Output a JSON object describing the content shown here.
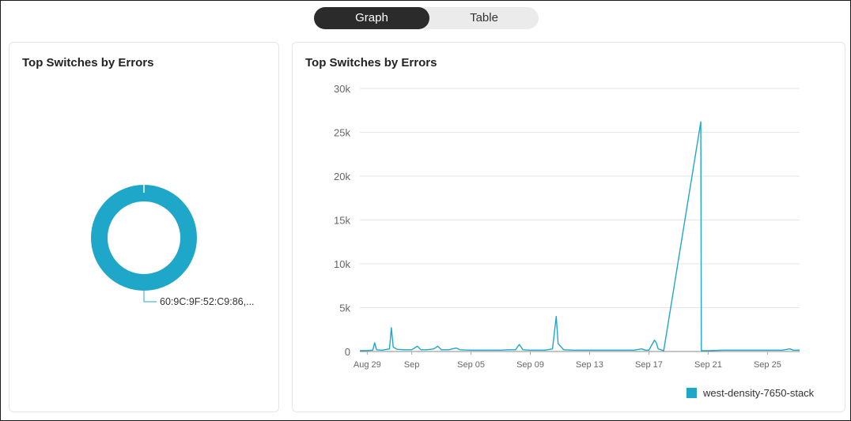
{
  "toggle": {
    "graph_label": "Graph",
    "table_label": "Table",
    "active": "Graph"
  },
  "colors": {
    "series": "#1fa7c9",
    "grid": "#e6e6e6",
    "axis_text": "#666666"
  },
  "left_panel": {
    "title": "Top Switches by Errors"
  },
  "right_panel": {
    "title": "Top Switches by Errors"
  },
  "chart_data": [
    {
      "type": "pie",
      "donut": true,
      "slices": [
        {
          "label": "60:9C:9F:52:C9:86,...",
          "value": 100
        }
      ]
    },
    {
      "type": "line",
      "x_type": "date",
      "ylim": [
        0,
        30000
      ],
      "y_ticks": [
        {
          "value": 0,
          "label": "0"
        },
        {
          "value": 5000,
          "label": "5k"
        },
        {
          "value": 10000,
          "label": "10k"
        },
        {
          "value": 15000,
          "label": "15k"
        },
        {
          "value": 20000,
          "label": "20k"
        },
        {
          "value": 25000,
          "label": "25k"
        },
        {
          "value": 30000,
          "label": "30k"
        }
      ],
      "x_ticks": [
        {
          "value": "2024-08-29",
          "label": "Aug 29"
        },
        {
          "value": "2024-09-01",
          "label": "Sep"
        },
        {
          "value": "2024-09-05",
          "label": "Sep 05"
        },
        {
          "value": "2024-09-09",
          "label": "Sep 09"
        },
        {
          "value": "2024-09-13",
          "label": "Sep 13"
        },
        {
          "value": "2024-09-17",
          "label": "Sep 17"
        },
        {
          "value": "2024-09-21",
          "label": "Sep 21"
        },
        {
          "value": "2024-09-25",
          "label": "Sep 25"
        }
      ],
      "xlim": [
        "2024-08-28T12:00",
        "2024-09-27T04:00"
      ],
      "legend_position": "bottom-right",
      "series": [
        {
          "name": "west-density-7650-stack",
          "points": [
            [
              "2024-08-28T12:00",
              100
            ],
            [
              "2024-08-29T00:00",
              120
            ],
            [
              "2024-08-29T09:00",
              150
            ],
            [
              "2024-08-29T12:00",
              1000
            ],
            [
              "2024-08-29T15:00",
              200
            ],
            [
              "2024-08-30T00:00",
              150
            ],
            [
              "2024-08-30T12:00",
              300
            ],
            [
              "2024-08-30T15:00",
              2700
            ],
            [
              "2024-08-30T18:00",
              500
            ],
            [
              "2024-08-31T00:00",
              250
            ],
            [
              "2024-08-31T12:00",
              200
            ],
            [
              "2024-09-01T00:00",
              200
            ],
            [
              "2024-09-01T09:00",
              600
            ],
            [
              "2024-09-01T15:00",
              200
            ],
            [
              "2024-09-02T00:00",
              200
            ],
            [
              "2024-09-02T12:00",
              300
            ],
            [
              "2024-09-02T18:00",
              600
            ],
            [
              "2024-09-03T00:00",
              200
            ],
            [
              "2024-09-03T12:00",
              200
            ],
            [
              "2024-09-04T00:00",
              400
            ],
            [
              "2024-09-04T06:00",
              200
            ],
            [
              "2024-09-05T00:00",
              150
            ],
            [
              "2024-09-06T00:00",
              150
            ],
            [
              "2024-09-07T00:00",
              150
            ],
            [
              "2024-09-07T12:00",
              200
            ],
            [
              "2024-09-08T00:00",
              200
            ],
            [
              "2024-09-08T06:00",
              800
            ],
            [
              "2024-09-08T12:00",
              200
            ],
            [
              "2024-09-09T00:00",
              150
            ],
            [
              "2024-09-10T00:00",
              150
            ],
            [
              "2024-09-10T12:00",
              300
            ],
            [
              "2024-09-10T18:00",
              4000
            ],
            [
              "2024-09-10T21:00",
              900
            ],
            [
              "2024-09-11T06:00",
              200
            ],
            [
              "2024-09-12T00:00",
              150
            ],
            [
              "2024-09-13T00:00",
              150
            ],
            [
              "2024-09-14T00:00",
              150
            ],
            [
              "2024-09-15T00:00",
              150
            ],
            [
              "2024-09-16T00:00",
              150
            ],
            [
              "2024-09-16T12:00",
              300
            ],
            [
              "2024-09-16T18:00",
              150
            ],
            [
              "2024-09-17T00:00",
              150
            ],
            [
              "2024-09-17T09:00",
              1300
            ],
            [
              "2024-09-17T12:00",
              1000
            ],
            [
              "2024-09-17T15:00",
              300
            ],
            [
              "2024-09-18T00:00",
              100
            ],
            [
              "2024-09-20T12:00",
              26200
            ],
            [
              "2024-09-20T13:00",
              100
            ],
            [
              "2024-09-21T00:00",
              100
            ],
            [
              "2024-09-22T00:00",
              150
            ],
            [
              "2024-09-23T00:00",
              150
            ],
            [
              "2024-09-24T00:00",
              150
            ],
            [
              "2024-09-25T00:00",
              150
            ],
            [
              "2024-09-26T00:00",
              150
            ],
            [
              "2024-09-26T12:00",
              300
            ],
            [
              "2024-09-26T18:00",
              150
            ],
            [
              "2024-09-27T04:00",
              150
            ]
          ]
        }
      ]
    }
  ]
}
